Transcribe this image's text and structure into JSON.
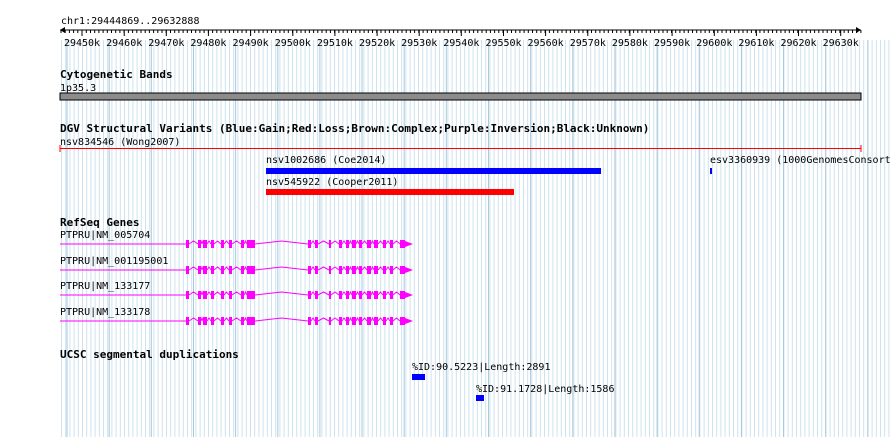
{
  "ruler": {
    "region": "chr1:29444869..29632888",
    "ticks": [
      "29450k",
      "29460k",
      "29470k",
      "29480k",
      "29490k",
      "29500k",
      "29510k",
      "29520k",
      "29530k",
      "29540k",
      "29550k",
      "29560k",
      "29570k",
      "29580k",
      "29590k",
      "29600k",
      "29610k",
      "29620k",
      "29630k"
    ]
  },
  "cytobands": {
    "title": "Cytogenetic Bands",
    "band": "1p35.3"
  },
  "dgv": {
    "title": "DGV Structural Variants (Blue:Gain;Red:Loss;Brown:Complex;Purple:Inversion;Black:Unknown)",
    "features": [
      {
        "label": "nsv834546 (Wong2007)",
        "type": "Loss",
        "color": "#ff0000"
      },
      {
        "label": "nsv1002686 (Coe2014)",
        "type": "Gain",
        "color": "#0000ff"
      },
      {
        "label": "esv3360939 (1000GenomesConsort",
        "type": "Gain",
        "color": "#0000ff"
      },
      {
        "label": "nsv545922 (Cooper2011)",
        "type": "Loss",
        "color": "#ff0000"
      }
    ]
  },
  "refseq": {
    "title": "RefSeq Genes",
    "color": "#ff00ff",
    "transcripts": [
      {
        "label": "PTPRU|NM_005704"
      },
      {
        "label": "PTPRU|NM_001195001"
      },
      {
        "label": "PTPRU|NM_133177"
      },
      {
        "label": "PTPRU|NM_133178"
      }
    ]
  },
  "segdups": {
    "title": "UCSC segmental duplications",
    "color": "#0000ff",
    "features": [
      {
        "label": "%ID:90.5223|Length:2891"
      },
      {
        "label": "%ID:91.1728|Length:1586"
      }
    ]
  }
}
